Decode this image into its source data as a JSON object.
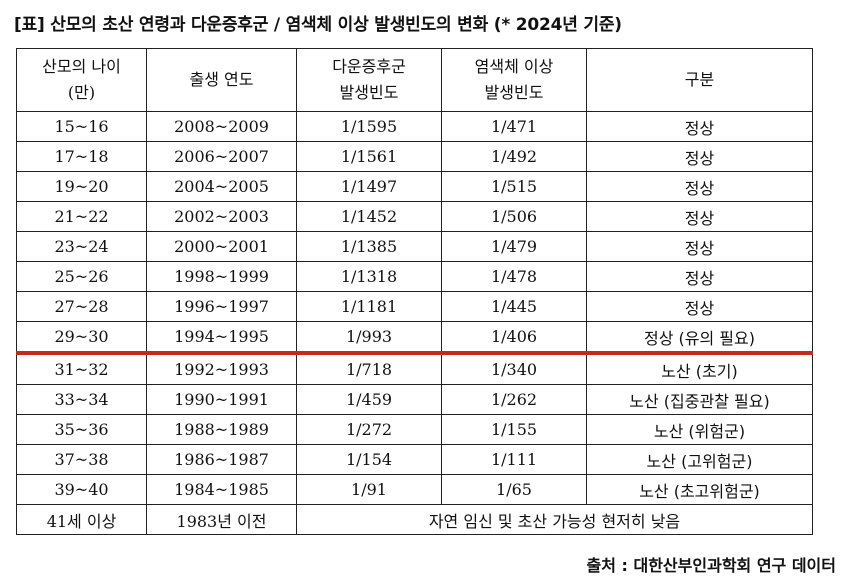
{
  "title": "[표] 산모의 초산 연령과 다운증후군 / 염색체 이상 발생빈도의 변화 (* 2024년 기준)",
  "headers": [
    "산모의 나이\n(만)",
    "출생 연도",
    "다운증후군\n발생빈도",
    "염색체 이상\n발생빈도",
    "구분"
  ],
  "rows": [
    [
      "15~16",
      "2008~2009",
      "1/1595",
      "1/471",
      "정상"
    ],
    [
      "17~18",
      "2006~2007",
      "1/1561",
      "1/492",
      "정상"
    ],
    [
      "19~20",
      "2004~2005",
      "1/1497",
      "1/515",
      "정상"
    ],
    [
      "21~22",
      "2002~2003",
      "1/1452",
      "1/506",
      "정상"
    ],
    [
      "23~24",
      "2000~2001",
      "1/1385",
      "1/479",
      "정상"
    ],
    [
      "25~26",
      "1998~1999",
      "1/1318",
      "1/478",
      "정상"
    ],
    [
      "27~28",
      "1996~1997",
      "1/1181",
      "1/445",
      "정상"
    ],
    [
      "29~30",
      "1994~1995",
      "1/993",
      "1/406",
      "정상 (유의 필요)"
    ],
    [
      "31~32",
      "1992~1993",
      "1/718",
      "1/340",
      "노산 (초기)"
    ],
    [
      "33~34",
      "1990~1991",
      "1/459",
      "1/262",
      "노산 (집중관찰 필요)"
    ],
    [
      "35~36",
      "1988~1989",
      "1/272",
      "1/155",
      "노산 (위험군)"
    ],
    [
      "37~38",
      "1986~1987",
      "1/154",
      "1/111",
      "노산 (고위험군)"
    ],
    [
      "39~40",
      "1984~1985",
      "1/91",
      "1/65",
      "노산 (초고위험군)"
    ]
  ],
  "last_row": {
    "age": "41세 이상",
    "year": "1983년 이전",
    "note": "자연 임신 및 초산 가능성 현저히 낮음"
  },
  "source": "출처 : 대한산부인과학회 연구 데이터",
  "colors": {
    "blue_divider": "#3a78c8",
    "red_divider": "#c8281e"
  }
}
